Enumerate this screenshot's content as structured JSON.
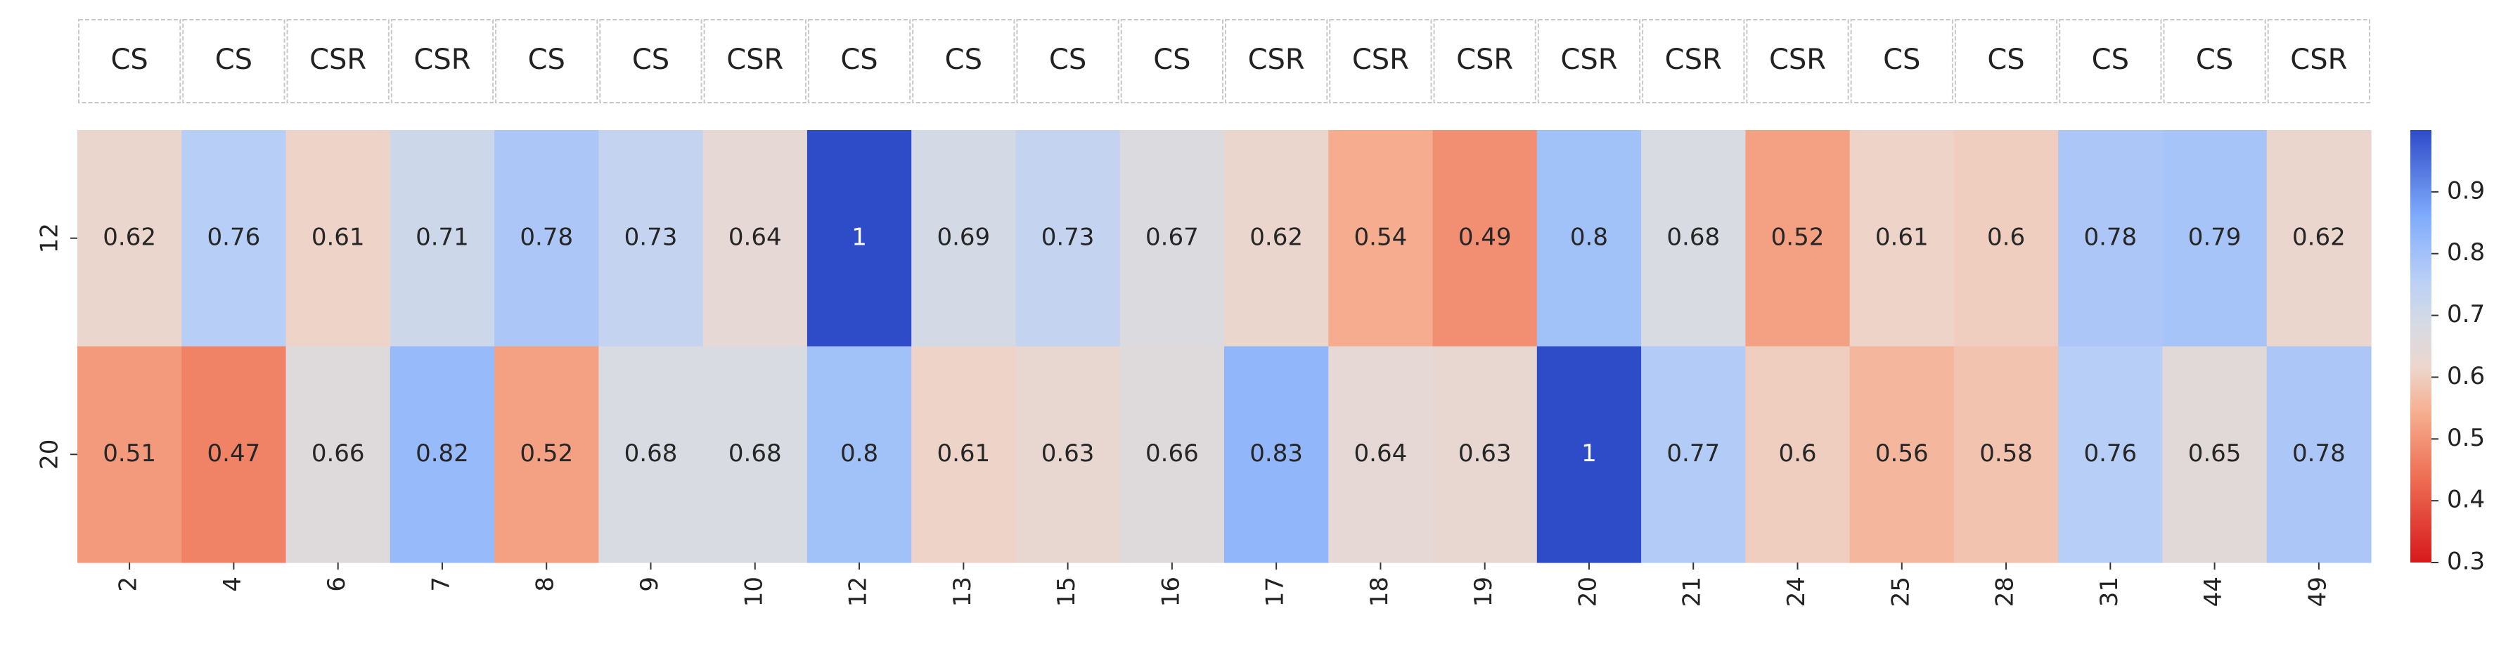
{
  "chart_data": {
    "type": "heatmap",
    "title": "",
    "xlabel": "",
    "ylabel": "",
    "row_labels": [
      "12",
      "20"
    ],
    "col_labels": [
      "2",
      "4",
      "6",
      "7",
      "8",
      "9",
      "10",
      "12",
      "13",
      "15",
      "16",
      "17",
      "18",
      "19",
      "20",
      "21",
      "24",
      "25",
      "28",
      "31",
      "44",
      "49"
    ],
    "group_labels": [
      "CS",
      "CS",
      "CSR",
      "CSR",
      "CS",
      "CS",
      "CSR",
      "CS",
      "CS",
      "CS",
      "CS",
      "CSR",
      "CSR",
      "CSR",
      "CSR",
      "CSR",
      "CSR",
      "CS",
      "CS",
      "CS",
      "CS",
      "CSR"
    ],
    "values": [
      [
        0.62,
        0.76,
        0.61,
        0.71,
        0.78,
        0.73,
        0.64,
        1,
        0.69,
        0.73,
        0.67,
        0.62,
        0.54,
        0.49,
        0.8,
        0.68,
        0.52,
        0.61,
        0.6,
        0.78,
        0.79,
        0.62
      ],
      [
        0.51,
        0.47,
        0.66,
        0.82,
        0.52,
        0.68,
        0.68,
        0.8,
        0.61,
        0.63,
        0.66,
        0.83,
        0.64,
        0.63,
        1,
        0.77,
        0.6,
        0.56,
        0.58,
        0.76,
        0.65,
        0.78
      ]
    ],
    "colormap": "coolwarm_r",
    "colorbar": {
      "range": [
        0.3,
        1.0
      ],
      "ticks": [
        "0.3",
        "0.4",
        "0.5",
        "0.6",
        "0.7",
        "0.8",
        "0.9"
      ]
    },
    "annotate": true
  },
  "colors": {
    "low": "#d7191c",
    "mid": "#dddcdb",
    "high": "#2e4bc8"
  }
}
